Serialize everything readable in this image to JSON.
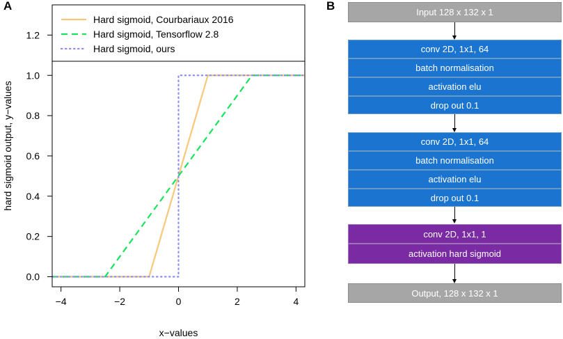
{
  "figure": {
    "panel_a_label": "A",
    "panel_b_label": "B"
  },
  "chart_data": {
    "type": "line",
    "title": "",
    "xlabel": "x−values",
    "ylabel": "hard sigmoid output, y−values",
    "xlim": [
      -4.3,
      4.3
    ],
    "ylim": [
      -0.05,
      1.35
    ],
    "xticks": [
      -4,
      -2,
      0,
      2,
      4
    ],
    "xtick_labels": [
      "−4",
      "−2",
      "0",
      "2",
      "4"
    ],
    "yticks": [
      0.0,
      0.2,
      0.4,
      0.6,
      0.8,
      1.0,
      1.2
    ],
    "ytick_labels": [
      "0.0",
      "0.2",
      "0.4",
      "0.6",
      "0.8",
      "1.0",
      "1.2"
    ],
    "grid": false,
    "legend_position": "top-right",
    "series": [
      {
        "name": "Hard sigmoid, Courbariaux 2016",
        "color": "#f7c87a",
        "style": "solid",
        "x": [
          -4.3,
          -1,
          1,
          4.3
        ],
        "y": [
          0,
          0,
          1,
          1
        ]
      },
      {
        "name": "Hard sigmoid, Tensorflow 2.8",
        "color": "#19e35c",
        "style": "dashed",
        "x": [
          -4.3,
          -2.5,
          2.5,
          4.3
        ],
        "y": [
          0,
          0,
          1,
          1
        ]
      },
      {
        "name": "Hard sigmoid, ours",
        "color": "#8e8ef0",
        "style": "dotted",
        "x": [
          -4.3,
          0,
          0,
          4.3
        ],
        "y": [
          0,
          0,
          1,
          1
        ]
      }
    ]
  },
  "diagram": {
    "input": "Input 128 x 132 x 1",
    "block1": [
      "conv 2D, 1x1, 64",
      "batch normalisation",
      "activation elu",
      "drop out 0.1"
    ],
    "block2": [
      "conv 2D, 1x1, 64",
      "batch normalisation",
      "activation elu",
      "drop out 0.1"
    ],
    "block3": [
      "conv 2D, 1x1, 1",
      "activation hard sigmoid"
    ],
    "output": "Output, 128 x 132 x 1",
    "colors": {
      "io": "#a6a6a6",
      "dense": "#1b75d0",
      "final": "#7a2aa2"
    }
  }
}
